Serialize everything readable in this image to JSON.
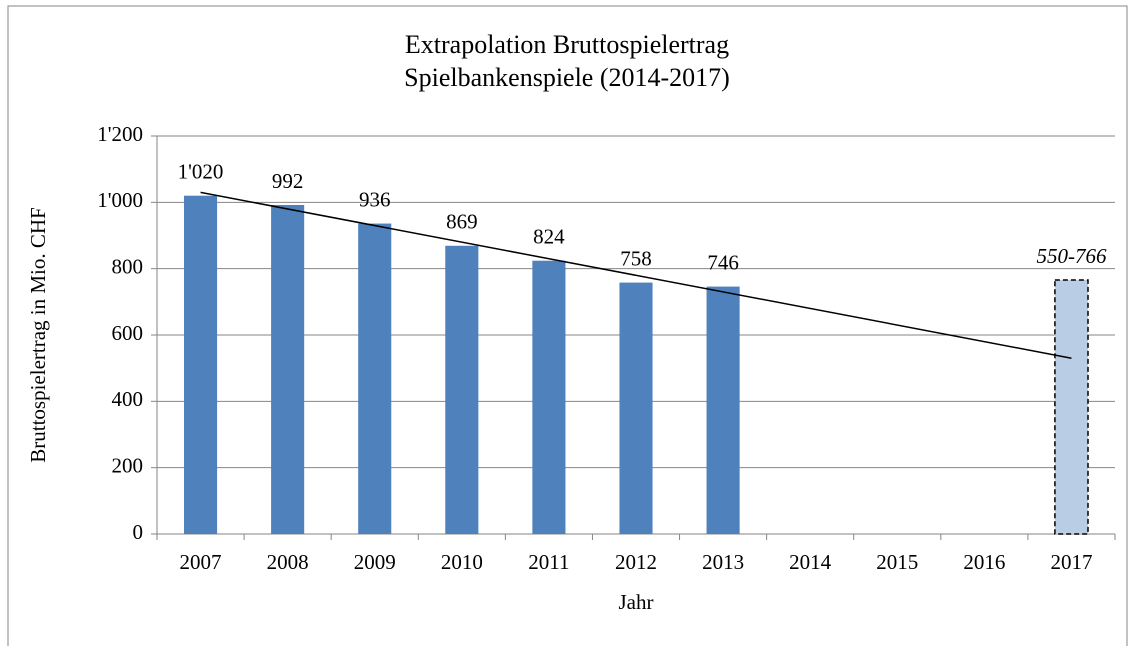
{
  "chart_data": {
    "type": "bar",
    "title": "Extrapolation Bruttospielertrag",
    "subtitle": "Spielbankenspiele (2014-2017)",
    "y_axis_label": "Bruttospielertrag in Mio. CHF",
    "x_axis_label": "Jahr",
    "categories": [
      "2007",
      "2008",
      "2009",
      "2010",
      "2011",
      "2012",
      "2013",
      "2014",
      "2015",
      "2016",
      "2017"
    ],
    "series": [
      {
        "color": "#4f81bd",
        "values": [
          1020,
          992,
          936,
          869,
          824,
          758,
          746,
          null,
          null,
          null,
          null
        ],
        "value_labels": [
          "1'020",
          "992",
          "936",
          "869",
          "824",
          "758",
          "746",
          null,
          null,
          null,
          null
        ]
      },
      {
        "color": "#b9cde5",
        "dashed": true,
        "italic_labels": true,
        "values": [
          null,
          null,
          null,
          null,
          null,
          null,
          null,
          null,
          null,
          null,
          766
        ],
        "value_labels": [
          null,
          null,
          null,
          null,
          null,
          null,
          null,
          null,
          null,
          null,
          "550-766"
        ]
      }
    ],
    "trendline": {
      "color": "#000000",
      "values": [
        1030,
        530
      ]
    },
    "ylim": [
      0,
      1200
    ],
    "yticks": [
      0,
      200,
      400,
      600,
      800,
      {
        "value": 1000,
        "label": "1'000"
      },
      {
        "value": 1200,
        "label": "1'200"
      }
    ],
    "grid": true
  }
}
